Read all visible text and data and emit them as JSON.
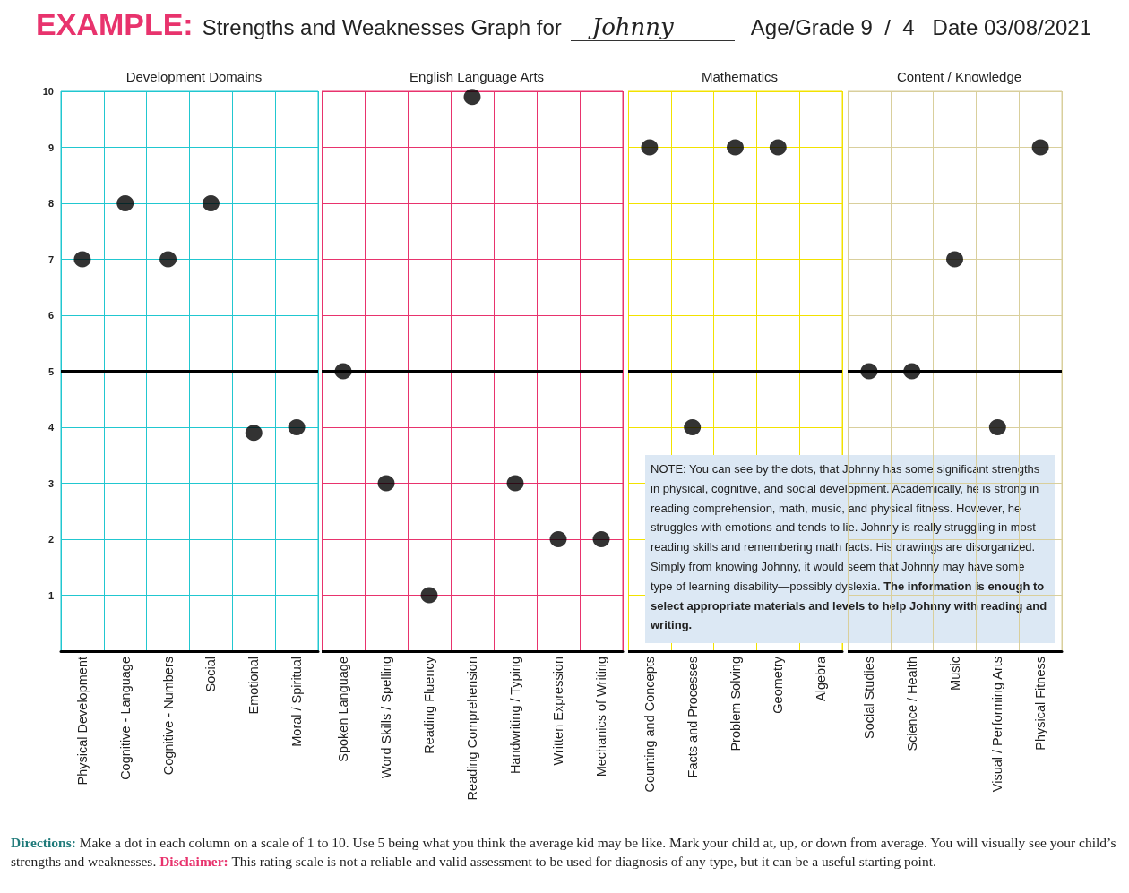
{
  "chart_data": [
    {
      "type": "other",
      "title": "EXAMPLE:",
      "annotations": [
        "Strengths and Weaknesses Graph for",
        "Johnny",
        "Age/Grade 9  /  4",
        "Date 03/08/2021",
        "Directions:",
        "Make a dot in each column on a scale of 1 to 10. Use 5 being what you think the average kid may be like. Mark your child at, up, or down from average. You will visually see your child’s strengths and weaknesses.",
        "Disclaimer:",
        "This rating scale is not a reliable and valid assessment to be used for diagnosis of any type, but it can be a useful starting point."
      ]
    },
    {
      "type": "scatter",
      "title": "Development Domains",
      "categories": [
        "Physical Development",
        "Cognitive - Language",
        "Cognitive - Numbers",
        "Social",
        "Emotional",
        "Moral / Spiritual"
      ],
      "series": [
        {
          "color": "#000000",
          "values": [
            7,
            8,
            7,
            8,
            3.9,
            4
          ]
        }
      ],
      "ylim": [
        0,
        10
      ],
      "yticks": [
        1,
        2,
        3,
        4,
        5,
        6,
        7,
        8,
        9,
        10
      ],
      "grid": true,
      "marker": "circle",
      "ref_lines": [
        {
          "axis": "y",
          "value": 5,
          "label": null,
          "color": "#000000"
        }
      ]
    },
    {
      "type": "scatter",
      "title": "English Language Arts",
      "categories": [
        "Spoken Language",
        "Word Skills / Spelling",
        "Reading Fluency",
        "Reading Comprehension",
        "Handwriting / Typing",
        "Written Expression",
        "Mechanics of Writing"
      ],
      "series": [
        {
          "color": "#000000",
          "values": [
            5,
            3,
            1,
            9.9,
            3,
            2,
            2
          ]
        }
      ],
      "ylim": [
        0,
        10
      ],
      "yticks": [
        1,
        2,
        3,
        4,
        5,
        6,
        7,
        8,
        9,
        10
      ],
      "tick_labels": "x",
      "grid": true,
      "marker": "circle",
      "ref_lines": [
        {
          "axis": "y",
          "value": 5,
          "label": null,
          "color": "#000000"
        }
      ]
    },
    {
      "type": "scatter",
      "title": "Mathematics",
      "categories": [
        "Counting and Concepts",
        "Facts and Processes",
        "Problem Solving",
        "Geometry",
        "Algebra"
      ],
      "series": [
        {
          "color": "#000000",
          "values": [
            9,
            4,
            9,
            9,
            null
          ]
        }
      ],
      "ylim": [
        0,
        10
      ],
      "yticks": [
        1,
        2,
        3,
        4,
        5,
        6,
        7,
        8,
        9,
        10
      ],
      "tick_labels": "x",
      "grid": true,
      "marker": "circle",
      "ref_lines": [
        {
          "axis": "y",
          "value": 5,
          "label": null,
          "color": "#000000"
        }
      ],
      "annotations": [
        "NOTE: You can see by the dots, that Johnny has some significant strengths in physical, cognitive, and social development. Academically, he is strong in reading comprehension, math, music, and physical fitness. However, he struggles with emotions and tends to lie.  Johnny is really struggling in most reading skills and remembering math facts. His drawings are disorganized.  Simply from knowing Johnny, it would seem that Johnny may have some type of learning disability—possibly dyslexia.",
        "The information is enough to select appropriate materials and levels to help Johnny with reading and writing."
      ]
    },
    {
      "type": "scatter",
      "title": "Content / Knowledge",
      "categories": [
        "Social Studies",
        "Science / Health",
        "Music",
        "Visual / Performing Arts",
        "Physical Fitness"
      ],
      "series": [
        {
          "color": "#000000",
          "values": [
            5,
            5,
            7,
            4,
            9
          ]
        }
      ],
      "ylim": [
        0,
        10
      ],
      "yticks": [
        1,
        2,
        3,
        4,
        5,
        6,
        7,
        8,
        9,
        10
      ],
      "tick_labels": "x",
      "grid": true,
      "marker": "circle",
      "ref_lines": [
        {
          "axis": "y",
          "value": 5,
          "label": null,
          "color": "#000000"
        }
      ]
    }
  ]
}
